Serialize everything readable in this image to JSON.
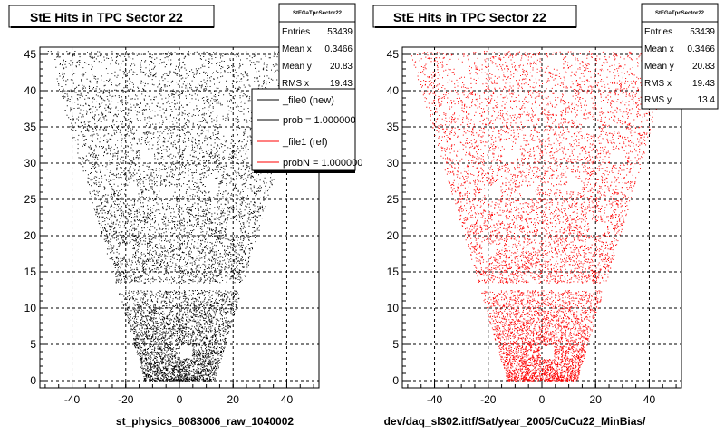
{
  "footer_text": "",
  "chart_data": [
    {
      "type": "scatter",
      "title": "StE Hits in TPC Sector 22",
      "xlabel": "st_physics_6083006_raw_1040002",
      "ylabel": "",
      "xlim": [
        -52,
        52
      ],
      "ylim": [
        -1,
        46
      ],
      "xticks": [
        -40,
        -20,
        0,
        20,
        40
      ],
      "yticks": [
        0,
        5,
        10,
        15,
        20,
        25,
        30,
        35,
        40,
        45
      ],
      "grid": true,
      "color": "#000000",
      "stats": {
        "title": "StEGaTpcSector22",
        "rows": [
          {
            "label": "Entries",
            "value": "53439"
          },
          {
            "label": "Mean x",
            "value": "0.3466"
          },
          {
            "label": "Mean y",
            "value": "20.83"
          },
          {
            "label": "RMS x",
            "value": "19.43"
          }
        ]
      },
      "legend": {
        "placement": "top-right",
        "entries": [
          {
            "label": "_file0 (new)",
            "color": "#000000",
            "style": "line"
          },
          {
            "label": "prob = 1.000000",
            "color": "#000000",
            "style": "line"
          },
          {
            "label": "_file1 (ref)",
            "color": "#ff0000",
            "style": "line"
          },
          {
            "label": "probN = 1.000000",
            "color": "#ff0000",
            "style": "line"
          }
        ]
      }
    },
    {
      "type": "scatter",
      "title": "StE Hits in TPC Sector 22",
      "xlabel": "dev/daq_sl302.ittf/Sat/year_2005/CuCu22_MinBias/",
      "ylabel": "",
      "xlim": [
        -52,
        52
      ],
      "ylim": [
        -1,
        46
      ],
      "xticks": [
        -40,
        -20,
        0,
        20,
        40
      ],
      "yticks": [
        0,
        5,
        10,
        15,
        20,
        25,
        30,
        35,
        40,
        45
      ],
      "grid": true,
      "color": "#ff0000",
      "stats": {
        "title": "StEGaTpcSector22",
        "rows": [
          {
            "label": "Entries",
            "value": "53439"
          },
          {
            "label": "Mean x",
            "value": "0.3466"
          },
          {
            "label": "Mean y",
            "value": "20.83"
          },
          {
            "label": "RMS x",
            "value": "19.43"
          },
          {
            "label": "RMS y",
            "value": "13.4"
          }
        ]
      }
    }
  ]
}
